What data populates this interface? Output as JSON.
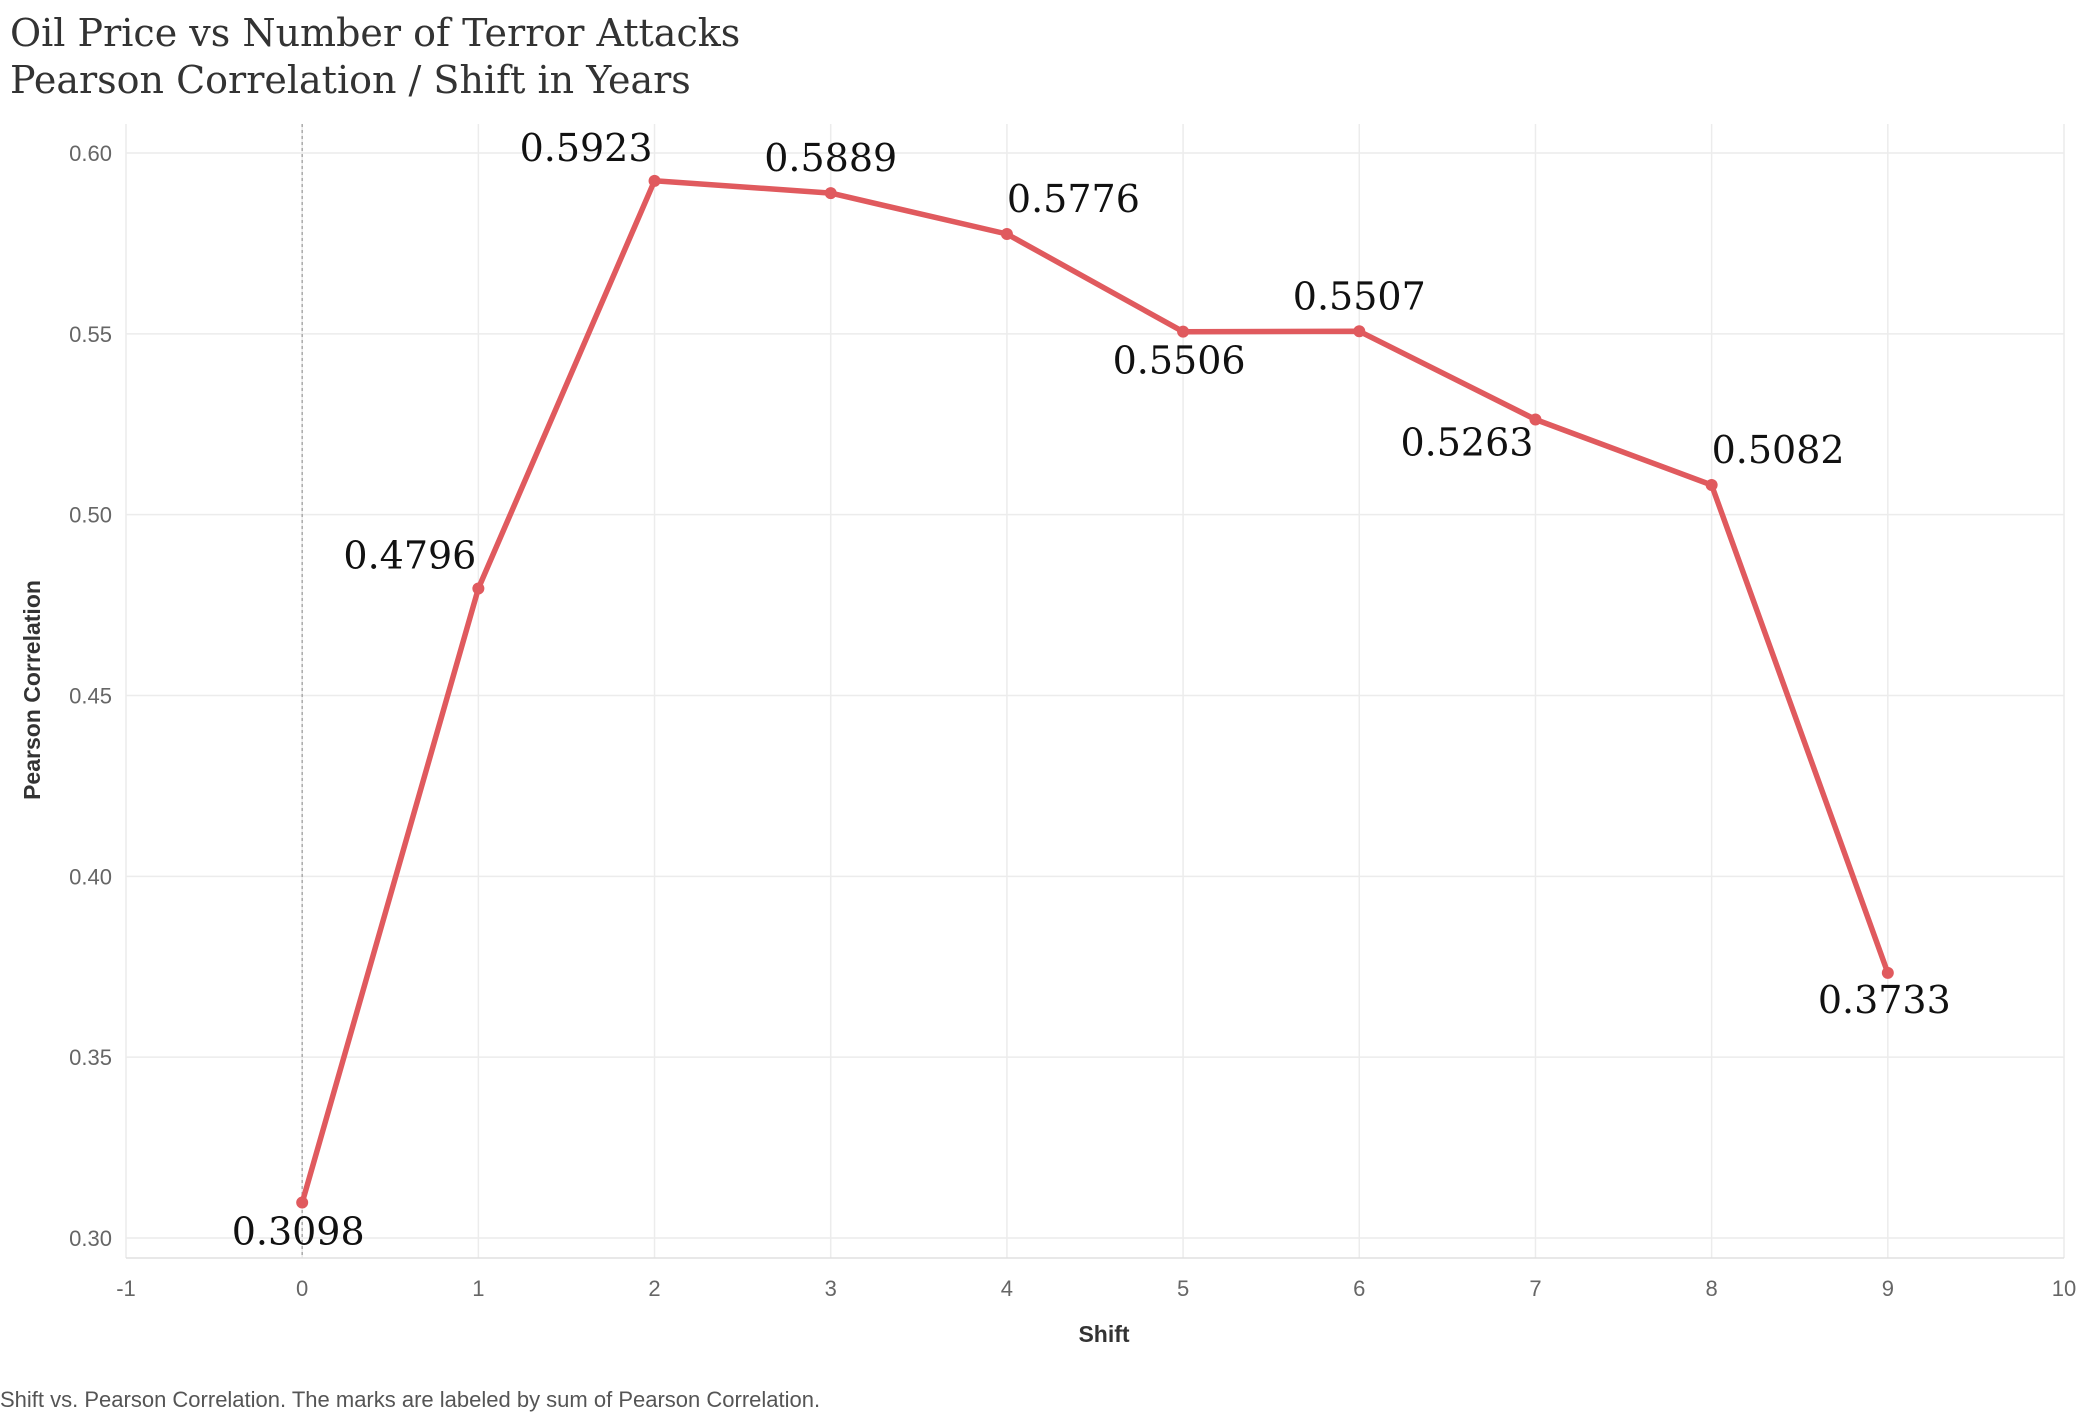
{
  "chart_data": {
    "type": "line",
    "title": "Oil Price vs Number of Terror Attacks",
    "subtitle": "Pearson Correlation / Shift in Years",
    "xlabel": "Shift",
    "ylabel": "Pearson Correlation",
    "caption": "Shift vs. Pearson Correlation.  The marks are labeled by sum of Pearson Correlation.",
    "xlim": [
      -1,
      10
    ],
    "ylim": [
      0.3,
      0.6
    ],
    "x_ticks": [
      -1,
      0,
      1,
      2,
      3,
      4,
      5,
      6,
      7,
      8,
      9,
      10
    ],
    "x_tick_labels": [
      "-1",
      "0",
      "1",
      "2",
      "3",
      "4",
      "5",
      "6",
      "7",
      "8",
      "9",
      "10"
    ],
    "y_ticks": [
      0.3,
      0.35,
      0.4,
      0.45,
      0.5,
      0.55,
      0.6
    ],
    "y_tick_labels": [
      "0.30",
      "0.35",
      "0.40",
      "0.45",
      "0.50",
      "0.55",
      "0.60"
    ],
    "grid": true,
    "reference_line_x": 0,
    "series": [
      {
        "color": "#e05a5e",
        "x": [
          0,
          1,
          2,
          3,
          4,
          5,
          6,
          7,
          8,
          9
        ],
        "y": [
          0.3098,
          0.4796,
          0.5923,
          0.5889,
          0.5776,
          0.5506,
          0.5507,
          0.5263,
          0.5082,
          0.3733
        ],
        "labels": [
          "0.3098",
          "0.4796",
          "0.5923",
          "0.5889",
          "0.5776",
          "0.5506",
          "0.5507",
          "0.5263",
          "0.5082",
          "0.3733"
        ],
        "label_positions": [
          "below",
          "left",
          "left",
          "above",
          "above-right",
          "below",
          "above",
          "below-left",
          "above-right",
          "below-right"
        ]
      }
    ]
  }
}
